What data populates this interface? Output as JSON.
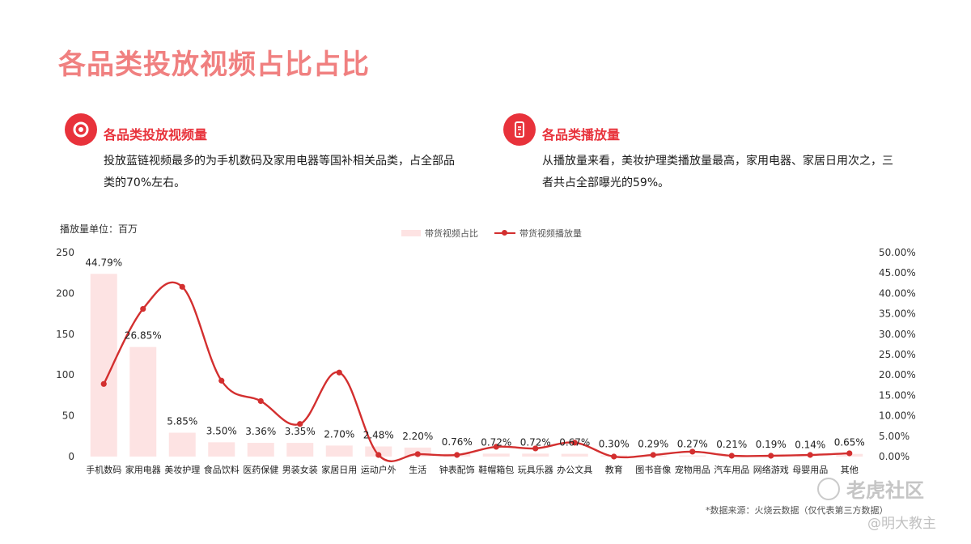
{
  "page_title": "各品类投放视频占比占比",
  "cards": [
    {
      "icon": "target-icon",
      "heading": "各品类投放视频量",
      "lines": [
        "投放蓝链视频最多的为手机数码及家用电器等国补相关品类，占全部品",
        "类的70%左右。"
      ]
    },
    {
      "icon": "mobile-phone-icon",
      "heading": "各品类播放量",
      "lines": [
        "从播放量来看，美妆护理类播放量最高，家用电器、家居日用次之，三",
        "者共占全部曝光的59%。"
      ]
    }
  ],
  "unit_label": "播放量单位：百万",
  "source": "*数据来源：火烧云数据（仅代表第三方数据）",
  "watermarks": [
    "老虎社区",
    "@明大教主"
  ],
  "colors": {
    "title": "#f08080",
    "accent": "#e8323b",
    "bar": "#fde3e3",
    "line": "#d32f2f"
  },
  "chart_data": {
    "type": "bar",
    "categories": [
      "手机数码",
      "家用电器",
      "美妆护理",
      "食品饮料",
      "医药保健",
      "男装女装",
      "家居日用",
      "运动户外",
      "生活",
      "钟表配饰",
      "鞋帽箱包",
      "玩具乐器",
      "办公文具",
      "教育",
      "图书音像",
      "宠物用品",
      "汽车用品",
      "网络游戏",
      "母婴用品",
      "其他"
    ],
    "series": [
      {
        "name": "带货视频占比",
        "type": "bar",
        "axis": "right",
        "values": [
          44.79,
          26.85,
          5.85,
          3.5,
          3.36,
          3.35,
          2.7,
          2.48,
          2.2,
          0.76,
          0.72,
          0.72,
          0.67,
          0.3,
          0.29,
          0.27,
          0.21,
          0.19,
          0.14,
          0.65
        ],
        "labels": [
          "44.79%",
          "26.85%",
          "5.85%",
          "3.50%",
          "3.36%",
          "3.35%",
          "2.70%",
          "2.48%",
          "2.20%",
          "0.76%",
          "0.72%",
          "0.72%",
          "0.67%",
          "0.30%",
          "0.29%",
          "0.27%",
          "0.21%",
          "0.19%",
          "0.14%",
          "0.65%"
        ]
      },
      {
        "name": "带货视频播放量",
        "type": "line",
        "axis": "left",
        "values": [
          89,
          181,
          208,
          93,
          68,
          40,
          103,
          2,
          3,
          2,
          12,
          10,
          17,
          0,
          2,
          6,
          1,
          1,
          2,
          4
        ]
      }
    ],
    "y_left": {
      "ticks": [
        "0",
        "50",
        "100",
        "150",
        "200",
        "250"
      ],
      "range": [
        0,
        250
      ]
    },
    "y_right": {
      "ticks": [
        "0.00%",
        "5.00%",
        "10.00%",
        "15.00%",
        "20.00%",
        "25.00%",
        "30.00%",
        "35.00%",
        "40.00%",
        "45.00%",
        "50.00%"
      ],
      "range": [
        0,
        50
      ]
    },
    "grid": false,
    "legend_position": "top-center"
  }
}
